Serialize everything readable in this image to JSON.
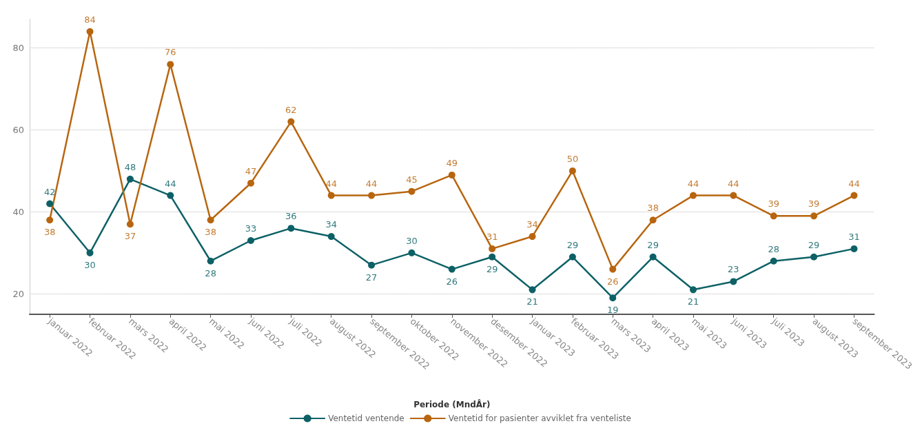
{
  "chart_data": {
    "type": "line",
    "xlabel": "Periode (MndÅr)",
    "categories": [
      "januar 2022",
      "februar 2022",
      "mars 2022",
      "april 2022",
      "mai 2022",
      "juni 2022",
      "juli 2022",
      "august 2022",
      "september 2022",
      "oktober 2022",
      "november 2022",
      "desember 2022",
      "januar 2023",
      "februar 2023",
      "mars 2023",
      "april 2023",
      "mai 2023",
      "juni 2023",
      "juli 2023",
      "august 2023",
      "september 2023"
    ],
    "series": [
      {
        "name": "Ventetid ventende",
        "color": "#0d6166",
        "values": [
          42,
          30,
          48,
          44,
          28,
          33,
          36,
          34,
          27,
          30,
          26,
          29,
          21,
          29,
          19,
          29,
          21,
          23,
          28,
          29,
          31
        ]
      },
      {
        "name": "Ventetid for pasienter avviklet fra venteliste",
        "color": "#b8650f",
        "values": [
          38,
          84,
          37,
          76,
          38,
          47,
          62,
          44,
          44,
          45,
          49,
          31,
          34,
          50,
          26,
          38,
          44,
          44,
          39,
          39,
          44
        ]
      }
    ],
    "ylim": [
      15,
      87
    ],
    "yticks": [
      20,
      40,
      60,
      80
    ],
    "grid": "y",
    "legend": "bottom",
    "marker": "circle",
    "line_style": "solid",
    "data_labels": true
  }
}
